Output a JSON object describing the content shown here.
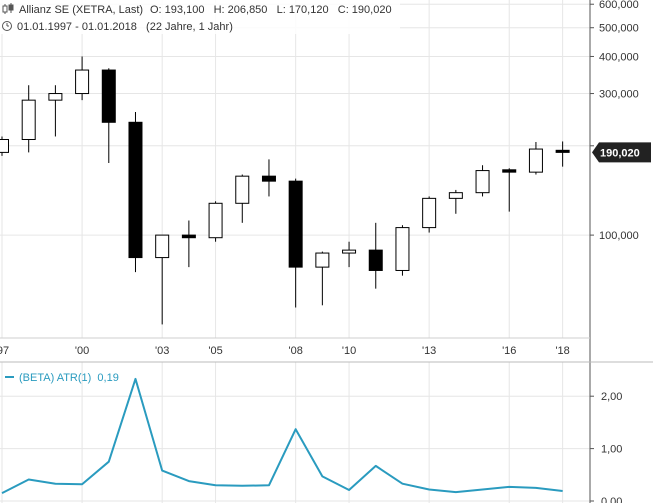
{
  "header": {
    "instrument": "Allianz SE (XETRA, Last)",
    "ohlc": "O: 193,100   H: 206,850   L: 170,120   C: 190,020",
    "period": "01.01.1997 - 01.01.2018   (22 Jahre, 1 Jahr)"
  },
  "last_price_badge": "190,020",
  "colors": {
    "grid": "#e6e6e6",
    "candle_border": "#000000",
    "up_fill": "#ffffff",
    "down_fill": "#000000",
    "atr_line": "#2a9bbf",
    "badge_bg": "#222222"
  },
  "chart_data": [
    {
      "type": "candlestick",
      "name": "price",
      "y_scale": "log",
      "ylim": [
        45000,
        620000
      ],
      "xlim": [
        1997,
        2019.1
      ],
      "y_ticks": [
        {
          "v": 100000,
          "label": "100,000"
        },
        {
          "v": 200000,
          "label": "200,000"
        },
        {
          "v": 300000,
          "label": "300,000"
        },
        {
          "v": 400000,
          "label": "400,000"
        },
        {
          "v": 500000,
          "label": "500,000"
        },
        {
          "v": 600000,
          "label": "600,000"
        }
      ],
      "x_ticks": [
        {
          "v": 1997,
          "label": "'97"
        },
        {
          "v": 2000,
          "label": "'00"
        },
        {
          "v": 2003,
          "label": "'03"
        },
        {
          "v": 2005,
          "label": "'05"
        },
        {
          "v": 2008,
          "label": "'08"
        },
        {
          "v": 2010,
          "label": "'10"
        },
        {
          "v": 2013,
          "label": "'13"
        },
        {
          "v": 2016,
          "label": "'16"
        },
        {
          "v": 2018,
          "label": "'18"
        }
      ],
      "candles": [
        {
          "x": 1997,
          "open": 190000,
          "high": 215000,
          "low": 185000,
          "close": 210000
        },
        {
          "x": 1998,
          "open": 210000,
          "high": 320000,
          "low": 190000,
          "close": 285000
        },
        {
          "x": 1999,
          "open": 285000,
          "high": 320000,
          "low": 215000,
          "close": 300000
        },
        {
          "x": 2000,
          "open": 300000,
          "high": 400000,
          "low": 285000,
          "close": 360000
        },
        {
          "x": 2001,
          "open": 360000,
          "high": 365000,
          "low": 175000,
          "close": 240000
        },
        {
          "x": 2002,
          "open": 240000,
          "high": 260000,
          "low": 75000,
          "close": 84000
        },
        {
          "x": 2003,
          "open": 84000,
          "high": 100000,
          "low": 50000,
          "close": 100000
        },
        {
          "x": 2004,
          "open": 100000,
          "high": 112000,
          "low": 78000,
          "close": 98000
        },
        {
          "x": 2005,
          "open": 98000,
          "high": 130000,
          "low": 95000,
          "close": 128000
        },
        {
          "x": 2006,
          "open": 128000,
          "high": 160000,
          "low": 110000,
          "close": 158000
        },
        {
          "x": 2007,
          "open": 158000,
          "high": 180000,
          "low": 135000,
          "close": 152000
        },
        {
          "x": 2008,
          "open": 152000,
          "high": 155000,
          "low": 57000,
          "close": 78000
        },
        {
          "x": 2009,
          "open": 78000,
          "high": 88000,
          "low": 58000,
          "close": 87000
        },
        {
          "x": 2010,
          "open": 87000,
          "high": 95000,
          "low": 78000,
          "close": 89000
        },
        {
          "x": 2011,
          "open": 89000,
          "high": 110000,
          "low": 66000,
          "close": 76000
        },
        {
          "x": 2012,
          "open": 76000,
          "high": 108000,
          "low": 73000,
          "close": 106000
        },
        {
          "x": 2013,
          "open": 106000,
          "high": 135000,
          "low": 102000,
          "close": 133000
        },
        {
          "x": 2014,
          "open": 133000,
          "high": 142000,
          "low": 118000,
          "close": 139000
        },
        {
          "x": 2015,
          "open": 139000,
          "high": 172000,
          "low": 135000,
          "close": 165000
        },
        {
          "x": 2016,
          "open": 166000,
          "high": 168000,
          "low": 120000,
          "close": 163000
        },
        {
          "x": 2017,
          "open": 163000,
          "high": 206000,
          "low": 160000,
          "close": 195000
        },
        {
          "x": 2018,
          "open": 193100,
          "high": 206850,
          "low": 170120,
          "close": 190020
        }
      ]
    },
    {
      "type": "line",
      "name": "atr",
      "label": "(BETA) ATR(1)  0,19",
      "ylim": [
        0,
        2.5
      ],
      "xlim": [
        1997,
        2019.1
      ],
      "y_ticks": [
        {
          "v": 0,
          "label": "0,00"
        },
        {
          "v": 1,
          "label": "1,00"
        },
        {
          "v": 2,
          "label": "2,00"
        }
      ],
      "x": [
        1997,
        1998,
        1999,
        2000,
        2001,
        2002,
        2003,
        2004,
        2005,
        2006,
        2007,
        2008,
        2009,
        2010,
        2011,
        2012,
        2013,
        2014,
        2015,
        2016,
        2017,
        2018
      ],
      "y": [
        0.15,
        0.41,
        0.33,
        0.32,
        0.75,
        2.33,
        0.58,
        0.38,
        0.3,
        0.29,
        0.3,
        1.37,
        0.47,
        0.21,
        0.67,
        0.33,
        0.22,
        0.17,
        0.22,
        0.27,
        0.25,
        0.19
      ]
    }
  ]
}
